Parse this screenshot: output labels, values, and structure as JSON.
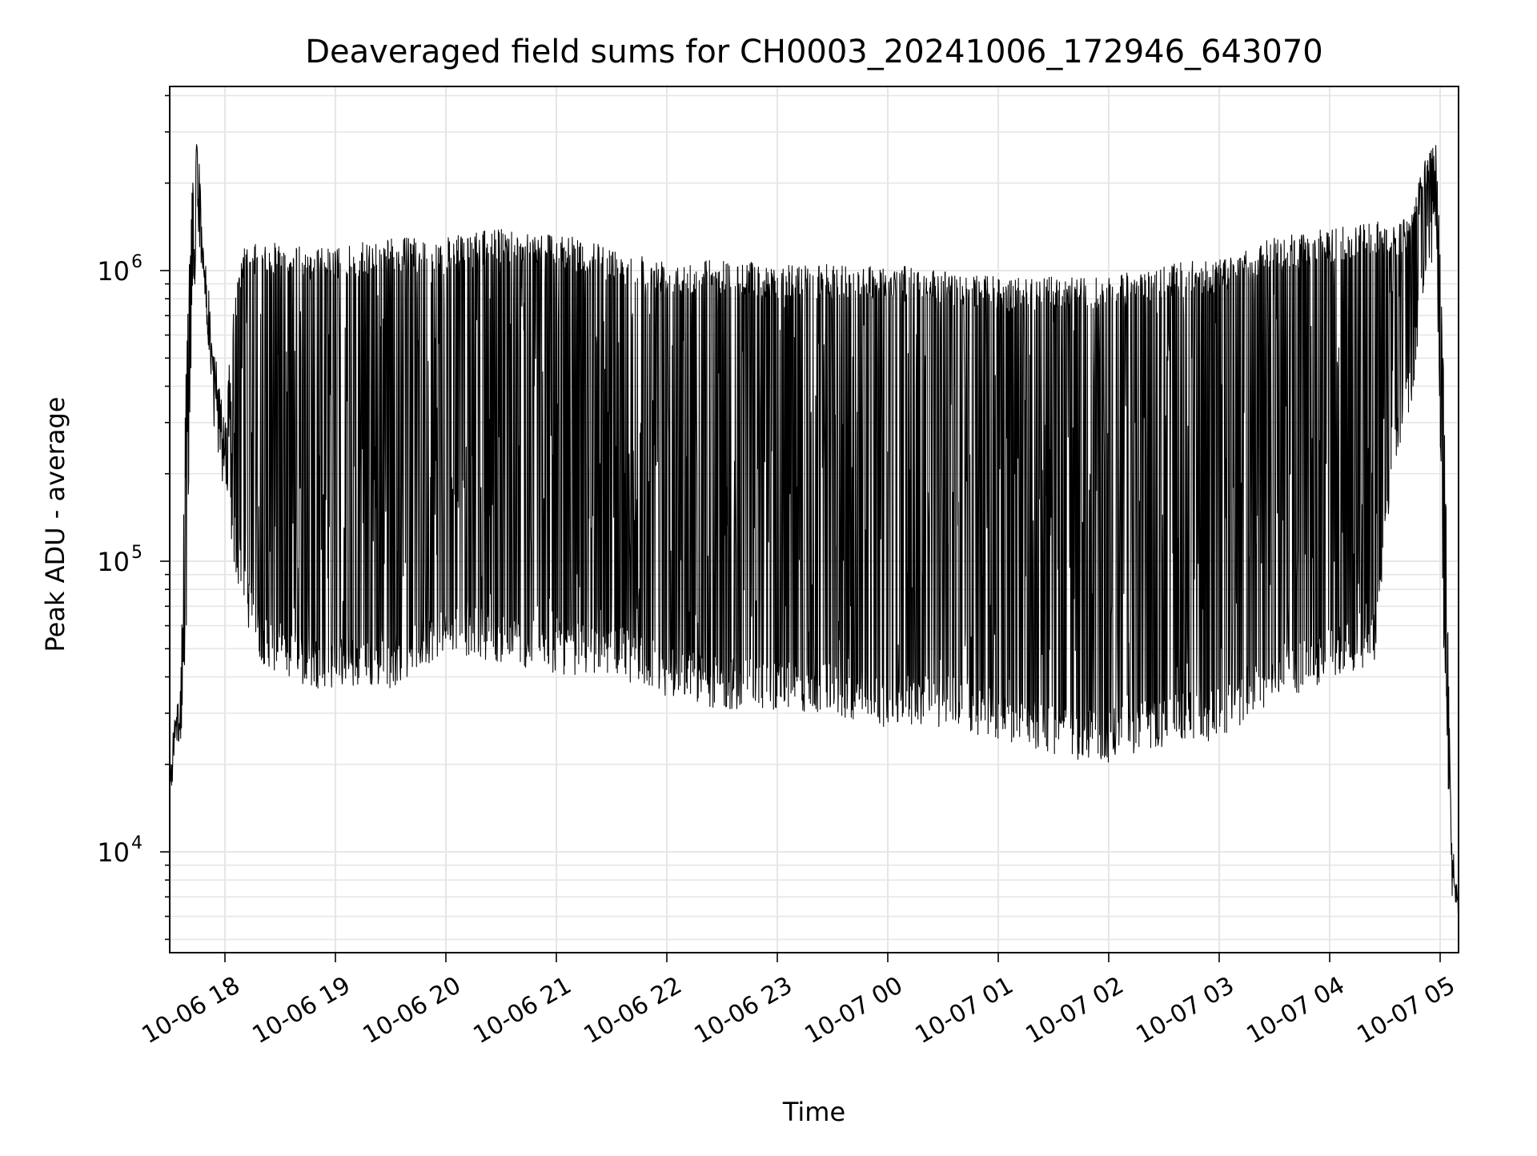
{
  "chart_data": {
    "type": "line",
    "title": "Deaveraged field sums for CH0003_20241006_172946_643070",
    "xlabel": "Time",
    "ylabel": "Peak ADU - average",
    "yscale": "log",
    "xlim": [
      "2024-10-06T17:30:00",
      "2024-10-07T05:10:00"
    ],
    "ylim": [
      4500,
      4300000
    ],
    "x_tick_labels": [
      {
        "t": "2024-10-06T18:00:00",
        "label": "10-06 18"
      },
      {
        "t": "2024-10-06T19:00:00",
        "label": "10-06 19"
      },
      {
        "t": "2024-10-06T20:00:00",
        "label": "10-06 20"
      },
      {
        "t": "2024-10-06T21:00:00",
        "label": "10-06 21"
      },
      {
        "t": "2024-10-06T22:00:00",
        "label": "10-06 22"
      },
      {
        "t": "2024-10-06T23:00:00",
        "label": "10-06 23"
      },
      {
        "t": "2024-10-07T00:00:00",
        "label": "10-07 00"
      },
      {
        "t": "2024-10-07T01:00:00",
        "label": "10-07 01"
      },
      {
        "t": "2024-10-07T02:00:00",
        "label": "10-07 02"
      },
      {
        "t": "2024-10-07T03:00:00",
        "label": "10-07 03"
      },
      {
        "t": "2024-10-07T04:00:00",
        "label": "10-07 04"
      },
      {
        "t": "2024-10-07T05:00:00",
        "label": "10-07 05"
      }
    ],
    "y_tick_labels": [
      {
        "v": 10000,
        "base": "10",
        "exp": "4"
      },
      {
        "v": 100000,
        "base": "10",
        "exp": "5"
      },
      {
        "v": 1000000,
        "base": "10",
        "exp": "6"
      }
    ],
    "grid": true,
    "line_color": "#000000",
    "envelope": {
      "note_free": true,
      "t": [
        "2024-10-06T17:30",
        "2024-10-06T17:33",
        "2024-10-06T17:36",
        "2024-10-06T17:39",
        "2024-10-06T17:42",
        "2024-10-06T17:45",
        "2024-10-06T17:48",
        "2024-10-06T17:51",
        "2024-10-06T17:54",
        "2024-10-06T17:57",
        "2024-10-06T18:00",
        "2024-10-06T18:05",
        "2024-10-06T18:10",
        "2024-10-06T18:20",
        "2024-10-06T18:30",
        "2024-10-06T18:45",
        "2024-10-06T19:00",
        "2024-10-06T19:30",
        "2024-10-06T20:00",
        "2024-10-06T20:30",
        "2024-10-06T21:00",
        "2024-10-06T21:30",
        "2024-10-06T22:00",
        "2024-10-06T22:30",
        "2024-10-06T23:00",
        "2024-10-06T23:30",
        "2024-10-07T00:00",
        "2024-10-07T00:30",
        "2024-10-07T01:00",
        "2024-10-07T01:30",
        "2024-10-07T02:00",
        "2024-10-07T02:30",
        "2024-10-07T03:00",
        "2024-10-07T03:30",
        "2024-10-07T04:00",
        "2024-10-07T04:25",
        "2024-10-07T04:35",
        "2024-10-07T04:45",
        "2024-10-07T04:52",
        "2024-10-07T04:58",
        "2024-10-07T05:02",
        "2024-10-07T05:06",
        "2024-10-07T05:10"
      ],
      "low": [
        15000,
        26000,
        30000,
        60000,
        700000,
        1500000,
        1000000,
        600000,
        350000,
        250000,
        200000,
        120000,
        80000,
        55000,
        50000,
        45000,
        45000,
        45000,
        60000,
        55000,
        50000,
        50000,
        42000,
        38000,
        38000,
        36000,
        33000,
        33000,
        30000,
        26000,
        25000,
        28000,
        30000,
        40000,
        48000,
        55000,
        250000,
        450000,
        1200000,
        1400000,
        60000,
        9000,
        6000
      ],
      "high": [
        22000,
        30000,
        38000,
        600000,
        1800000,
        3200000,
        1300000,
        900000,
        600000,
        400000,
        300000,
        800000,
        1200000,
        1250000,
        1250000,
        1200000,
        1200000,
        1300000,
        1300000,
        1400000,
        1350000,
        1200000,
        1100000,
        1100000,
        1050000,
        1050000,
        1050000,
        1000000,
        950000,
        950000,
        950000,
        1050000,
        1100000,
        1300000,
        1400000,
        1500000,
        1450000,
        1600000,
        2600000,
        2800000,
        500000,
        12000,
        7000
      ]
    }
  }
}
